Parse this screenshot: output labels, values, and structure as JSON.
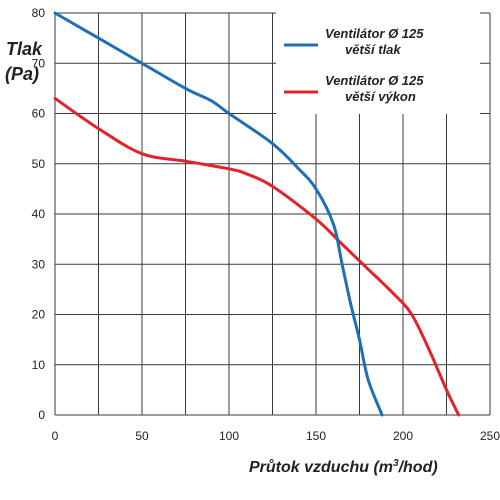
{
  "chart_data": {
    "type": "line",
    "ylabel_line1": "Tlak",
    "ylabel_line2": "(Pa)",
    "xlabel_prefix": "Průtok vzduchu (m",
    "xlabel_sup": "3",
    "xlabel_suffix": "/hod)",
    "xlim": [
      0,
      250
    ],
    "ylim": [
      0,
      80
    ],
    "x_ticks": [
      0,
      50,
      100,
      150,
      200,
      250
    ],
    "y_ticks": [
      0,
      10,
      20,
      30,
      40,
      50,
      60,
      70,
      80
    ],
    "grid": true,
    "legend_position": "top-right",
    "series": [
      {
        "name_line1": "Ventilátor Ø 125",
        "name_line2": "větší tlak",
        "color": "#1f6fb4",
        "x": [
          0,
          25,
          50,
          75,
          90,
          100,
          125,
          140,
          150,
          160,
          165,
          170,
          175,
          180,
          188
        ],
        "y": [
          80,
          75,
          70,
          65,
          62.5,
          60,
          54,
          49,
          45,
          38,
          30,
          22,
          15,
          7,
          0
        ]
      },
      {
        "name_line1": "Ventilátor Ø 125",
        "name_line2": "větší výkon",
        "color": "#e2232a",
        "x": [
          0,
          25,
          50,
          75,
          100,
          110,
          125,
          150,
          165,
          180,
          195,
          205,
          215,
          225,
          232
        ],
        "y": [
          63,
          57,
          52,
          50.5,
          49,
          48,
          45.5,
          39,
          34,
          29,
          24,
          20,
          13,
          5,
          0
        ]
      }
    ]
  }
}
